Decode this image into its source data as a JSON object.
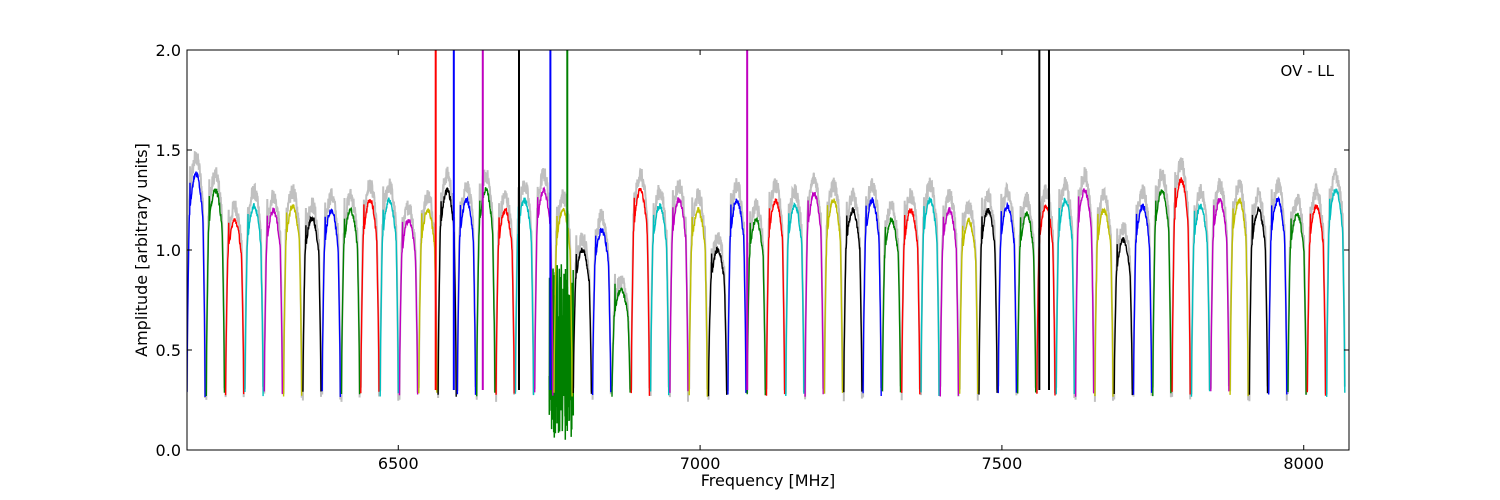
{
  "chart_data": {
    "type": "line",
    "title": "",
    "annotation": "OV - LL",
    "xlabel": "Frequency [MHz]",
    "ylabel": "Amplitude [arbitrary units]",
    "xlim": [
      6150,
      8075
    ],
    "ylim": [
      0,
      2.0
    ],
    "grid": false,
    "x_ticks": [
      6500,
      7000,
      7500,
      8000
    ],
    "x_tick_labels": [
      "6500",
      "7000",
      "7500",
      "8000"
    ],
    "y_ticks": [
      0.0,
      0.5,
      1.0,
      1.5,
      2.0
    ],
    "y_tick_labels": [
      "0.0",
      "0.5",
      "1.0",
      "1.5",
      "2.0"
    ],
    "background_color": "#c0c0c0",
    "palette": [
      "#0000ff",
      "#008000",
      "#ff0000",
      "#00bfbf",
      "#bf00bf",
      "#bfbf00",
      "#000000"
    ],
    "channel_width_mhz": 32,
    "channel_start_mhz": 6150,
    "series": [
      {
        "x0": 6150,
        "color": "#0000ff",
        "level": 1.38
      },
      {
        "x0": 6182,
        "color": "#008000",
        "level": 1.3
      },
      {
        "x0": 6214,
        "color": "#ff0000",
        "level": 1.15
      },
      {
        "x0": 6246,
        "color": "#00bfbf",
        "level": 1.22
      },
      {
        "x0": 6278,
        "color": "#bf00bf",
        "level": 1.2
      },
      {
        "x0": 6310,
        "color": "#bfbf00",
        "level": 1.22
      },
      {
        "x0": 6342,
        "color": "#000000",
        "level": 1.16
      },
      {
        "x0": 6374,
        "color": "#0000ff",
        "level": 1.2
      },
      {
        "x0": 6406,
        "color": "#008000",
        "level": 1.2
      },
      {
        "x0": 6438,
        "color": "#ff0000",
        "level": 1.25
      },
      {
        "x0": 6470,
        "color": "#00bfbf",
        "level": 1.25
      },
      {
        "x0": 6502,
        "color": "#bf00bf",
        "level": 1.15
      },
      {
        "x0": 6534,
        "color": "#bfbf00",
        "level": 1.2
      },
      {
        "x0": 6566,
        "color": "#000000",
        "level": 1.3
      },
      {
        "x0": 6598,
        "color": "#0000ff",
        "level": 1.25
      },
      {
        "x0": 6630,
        "color": "#008000",
        "level": 1.3
      },
      {
        "x0": 6662,
        "color": "#ff0000",
        "level": 1.2
      },
      {
        "x0": 6694,
        "color": "#00bfbf",
        "level": 1.25
      },
      {
        "x0": 6726,
        "color": "#bf00bf",
        "level": 1.3
      },
      {
        "x0": 6758,
        "color": "#bfbf00",
        "level": 1.2
      },
      {
        "x0": 6790,
        "color": "#000000",
        "level": 1.0
      },
      {
        "x0": 6822,
        "color": "#0000ff",
        "level": 1.1
      },
      {
        "x0": 6854,
        "color": "#008000",
        "level": 0.8
      },
      {
        "x0": 6886,
        "color": "#ff0000",
        "level": 1.3
      },
      {
        "x0": 6918,
        "color": "#00bfbf",
        "level": 1.22
      },
      {
        "x0": 6950,
        "color": "#bf00bf",
        "level": 1.25
      },
      {
        "x0": 6982,
        "color": "#bfbf00",
        "level": 1.2
      },
      {
        "x0": 7014,
        "color": "#000000",
        "level": 1.0
      },
      {
        "x0": 7046,
        "color": "#0000ff",
        "level": 1.25
      },
      {
        "x0": 7078,
        "color": "#008000",
        "level": 1.15
      },
      {
        "x0": 7110,
        "color": "#ff0000",
        "level": 1.25
      },
      {
        "x0": 7142,
        "color": "#00bfbf",
        "level": 1.22
      },
      {
        "x0": 7174,
        "color": "#bf00bf",
        "level": 1.28
      },
      {
        "x0": 7206,
        "color": "#bfbf00",
        "level": 1.25
      },
      {
        "x0": 7238,
        "color": "#000000",
        "level": 1.2
      },
      {
        "x0": 7270,
        "color": "#0000ff",
        "level": 1.25
      },
      {
        "x0": 7302,
        "color": "#008000",
        "level": 1.15
      },
      {
        "x0": 7334,
        "color": "#ff0000",
        "level": 1.2
      },
      {
        "x0": 7366,
        "color": "#00bfbf",
        "level": 1.25
      },
      {
        "x0": 7398,
        "color": "#bf00bf",
        "level": 1.2
      },
      {
        "x0": 7430,
        "color": "#bfbf00",
        "level": 1.15
      },
      {
        "x0": 7462,
        "color": "#000000",
        "level": 1.2
      },
      {
        "x0": 7494,
        "color": "#0000ff",
        "level": 1.22
      },
      {
        "x0": 7526,
        "color": "#008000",
        "level": 1.18
      },
      {
        "x0": 7558,
        "color": "#ff0000",
        "level": 1.22
      },
      {
        "x0": 7590,
        "color": "#00bfbf",
        "level": 1.25
      },
      {
        "x0": 7622,
        "color": "#bf00bf",
        "level": 1.3
      },
      {
        "x0": 7654,
        "color": "#bfbf00",
        "level": 1.2
      },
      {
        "x0": 7686,
        "color": "#000000",
        "level": 1.05
      },
      {
        "x0": 7718,
        "color": "#0000ff",
        "level": 1.22
      },
      {
        "x0": 7750,
        "color": "#008000",
        "level": 1.3
      },
      {
        "x0": 7782,
        "color": "#ff0000",
        "level": 1.35
      },
      {
        "x0": 7814,
        "color": "#00bfbf",
        "level": 1.22
      },
      {
        "x0": 7846,
        "color": "#bf00bf",
        "level": 1.25
      },
      {
        "x0": 7878,
        "color": "#bfbf00",
        "level": 1.25
      },
      {
        "x0": 7910,
        "color": "#000000",
        "level": 1.2
      },
      {
        "x0": 7942,
        "color": "#0000ff",
        "level": 1.25
      },
      {
        "x0": 7974,
        "color": "#008000",
        "level": 1.18
      },
      {
        "x0": 8006,
        "color": "#ff0000",
        "level": 1.22
      },
      {
        "x0": 8038,
        "color": "#00bfbf",
        "level": 1.3
      }
    ],
    "spikes": [
      {
        "x": 6562,
        "color": "#ff0000"
      },
      {
        "x": 6592,
        "color": "#0000ff"
      },
      {
        "x": 6640,
        "color": "#bf00bf"
      },
      {
        "x": 6700,
        "color": "#000000"
      },
      {
        "x": 6752,
        "color": "#0000ff"
      },
      {
        "x": 6780,
        "color": "#008000"
      },
      {
        "x": 7078,
        "color": "#bf00bf"
      },
      {
        "x": 7562,
        "color": "#000000"
      },
      {
        "x": 7578,
        "color": "#000000"
      }
    ],
    "noisy_region": {
      "x_start": 6750,
      "x_end": 6790,
      "color": "#008000"
    }
  }
}
